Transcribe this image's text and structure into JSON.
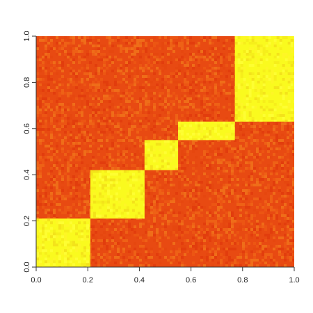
{
  "chart_data": {
    "type": "heatmap",
    "title": "",
    "xlabel": "",
    "ylabel": "",
    "xlim": [
      0.0,
      1.0
    ],
    "ylim": [
      0.0,
      1.0
    ],
    "x_ticks": [
      0.0,
      0.2,
      0.4,
      0.6,
      0.8,
      1.0
    ],
    "x_tick_labels": [
      "0.0",
      "0.2",
      "0.4",
      "0.6",
      "0.8",
      "1.0"
    ],
    "y_ticks": [
      0.0,
      0.2,
      0.4,
      0.6,
      0.8,
      1.0
    ],
    "y_tick_labels": [
      "0.0",
      "0.2",
      "0.4",
      "0.6",
      "0.8",
      "1.0"
    ],
    "grid": false,
    "legend": "none",
    "colormap": "heat",
    "background_color": "#e84a12",
    "block_color": "#fafa1e",
    "blocks": [
      {
        "x": [
          0.0,
          0.21
        ],
        "y": [
          0.0,
          0.21
        ]
      },
      {
        "x": [
          0.21,
          0.42
        ],
        "y": [
          0.21,
          0.42
        ]
      },
      {
        "x": [
          0.42,
          0.55
        ],
        "y": [
          0.42,
          0.55
        ]
      },
      {
        "x": [
          0.55,
          0.77
        ],
        "y": [
          0.55,
          0.63
        ]
      },
      {
        "x": [
          0.77,
          1.0
        ],
        "y": [
          0.63,
          1.0
        ]
      }
    ]
  }
}
